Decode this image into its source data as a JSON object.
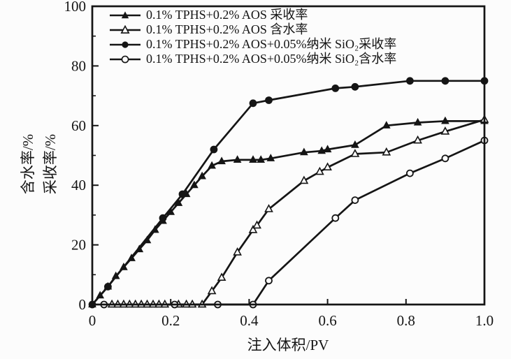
{
  "chart_data": {
    "type": "line",
    "title": "",
    "xlabel": "注入体积/PV",
    "ylabel": "含水率/%  采收率/%",
    "ylabel_lines": [
      "含水率/%",
      "采收率/%"
    ],
    "xlim": [
      0,
      1.0
    ],
    "ylim": [
      0,
      100
    ],
    "x_ticks": [
      "0",
      "0.2",
      "0.4",
      "0.6",
      "0.8",
      "1.0"
    ],
    "x_tick_values": [
      0,
      0.2,
      0.4,
      0.6,
      0.8,
      1.0
    ],
    "y_ticks": [
      "0",
      "20",
      "40",
      "60",
      "80",
      "100"
    ],
    "y_tick_values": [
      0,
      20,
      40,
      60,
      80,
      100
    ],
    "y_minor_ticks": [
      10,
      30,
      50,
      70,
      90
    ],
    "grid": false,
    "legend_position": "top-left",
    "line_color": "#151515",
    "background_color": "#fcfcfc",
    "series": [
      {
        "name": "0.1% TPHS+0.2% AOS 采收率",
        "marker": "triangle-filled",
        "points": [
          [
            0,
            0
          ],
          [
            0.02,
            3
          ],
          [
            0.04,
            6
          ],
          [
            0.06,
            9.5
          ],
          [
            0.08,
            12.5
          ],
          [
            0.1,
            15.5
          ],
          [
            0.12,
            18.5
          ],
          [
            0.14,
            21.5
          ],
          [
            0.16,
            25
          ],
          [
            0.18,
            28
          ],
          [
            0.2,
            31
          ],
          [
            0.22,
            34
          ],
          [
            0.24,
            37
          ],
          [
            0.26,
            40
          ],
          [
            0.28,
            43
          ],
          [
            0.305,
            46.5
          ],
          [
            0.33,
            48
          ],
          [
            0.37,
            48.5
          ],
          [
            0.41,
            48.5
          ],
          [
            0.43,
            48.5
          ],
          [
            0.455,
            49
          ],
          [
            0.54,
            51
          ],
          [
            0.585,
            51.5
          ],
          [
            0.6,
            52
          ],
          [
            0.67,
            53.5
          ],
          [
            0.75,
            60
          ],
          [
            0.83,
            61
          ],
          [
            0.9,
            61.5
          ],
          [
            1.0,
            61.5
          ]
        ]
      },
      {
        "name": "0.1% TPHS+0.2% AOS 含水率",
        "marker": "triangle-open",
        "points": [
          [
            0.05,
            0
          ],
          [
            0.065,
            0
          ],
          [
            0.08,
            0
          ],
          [
            0.095,
            0
          ],
          [
            0.11,
            0
          ],
          [
            0.125,
            0
          ],
          [
            0.14,
            0
          ],
          [
            0.155,
            0
          ],
          [
            0.17,
            0
          ],
          [
            0.185,
            0
          ],
          [
            0.22,
            0
          ],
          [
            0.24,
            0
          ],
          [
            0.255,
            0
          ],
          [
            0.28,
            0
          ],
          [
            0.305,
            4.5
          ],
          [
            0.33,
            9
          ],
          [
            0.37,
            17.5
          ],
          [
            0.41,
            25
          ],
          [
            0.42,
            26.5
          ],
          [
            0.45,
            32
          ],
          [
            0.54,
            41.5
          ],
          [
            0.58,
            44.5
          ],
          [
            0.6,
            46
          ],
          [
            0.67,
            50.5
          ],
          [
            0.75,
            51
          ],
          [
            0.83,
            55
          ],
          [
            0.9,
            58
          ],
          [
            1.0,
            62
          ]
        ]
      },
      {
        "name": "0.1% TPHS+0.2% AOS+0.05%纳米 SiO₂采收率",
        "marker": "circle-filled",
        "points": [
          [
            0,
            0
          ],
          [
            0.04,
            6
          ],
          [
            0.18,
            29
          ],
          [
            0.23,
            37
          ],
          [
            0.31,
            52
          ],
          [
            0.41,
            67.5
          ],
          [
            0.45,
            68.5
          ],
          [
            0.62,
            72.5
          ],
          [
            0.67,
            73
          ],
          [
            0.81,
            75
          ],
          [
            0.9,
            75
          ],
          [
            1.0,
            75
          ]
        ]
      },
      {
        "name": "0.1% TPHS+0.2% AOS+0.05%纳米 SiO₂含水率",
        "marker": "circle-open",
        "points": [
          [
            0.03,
            0
          ],
          [
            0.21,
            0
          ],
          [
            0.32,
            0
          ],
          [
            0.41,
            0
          ],
          [
            0.45,
            8
          ],
          [
            0.62,
            29
          ],
          [
            0.67,
            35
          ],
          [
            0.81,
            44
          ],
          [
            0.9,
            49
          ],
          [
            1.0,
            55
          ]
        ]
      }
    ]
  }
}
